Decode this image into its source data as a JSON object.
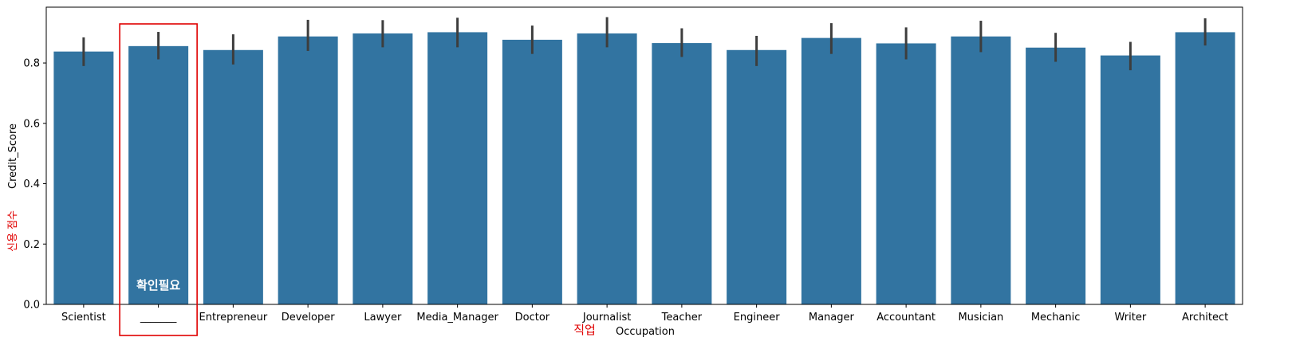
{
  "chart_data": {
    "type": "bar",
    "xlabel": "Occupation",
    "ylabel": "Credit_Score",
    "ylim": [
      0,
      0.985
    ],
    "yticks": [
      0.0,
      0.2,
      0.4,
      0.6,
      0.8
    ],
    "ytick_labels": [
      "0.0",
      "0.2",
      "0.4",
      "0.6",
      "0.8"
    ],
    "categories": [
      "Scientist",
      "_______",
      "Entrepreneur",
      "Developer",
      "Lawyer",
      "Media_Manager",
      "Doctor",
      "Journalist",
      "Teacher",
      "Engineer",
      "Manager",
      "Accountant",
      "Musician",
      "Mechanic",
      "Writer",
      "Architect"
    ],
    "values": [
      0.838,
      0.856,
      0.843,
      0.888,
      0.898,
      0.902,
      0.877,
      0.898,
      0.866,
      0.843,
      0.883,
      0.865,
      0.888,
      0.851,
      0.825,
      0.902
    ],
    "err_low": [
      0.79,
      0.812,
      0.795,
      0.84,
      0.852,
      0.852,
      0.83,
      0.852,
      0.82,
      0.79,
      0.83,
      0.812,
      0.836,
      0.804,
      0.776,
      0.858
    ],
    "err_high": [
      0.885,
      0.903,
      0.895,
      0.943,
      0.942,
      0.95,
      0.924,
      0.952,
      0.915,
      0.89,
      0.932,
      0.918,
      0.94,
      0.9,
      0.87,
      0.948
    ],
    "bar_color": "#3274a1",
    "error_color": "#3d3d3d",
    "grid": false
  },
  "annotations": {
    "highlight_index": 1,
    "highlight_color": "#e00000",
    "bar_note": "확인필요",
    "xlabel_kr": "직업",
    "ylabel_kr": "신용 점수"
  }
}
